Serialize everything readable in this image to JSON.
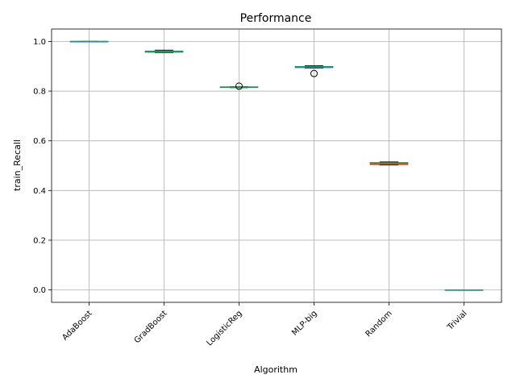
{
  "chart_data": {
    "type": "box",
    "title": "Performance",
    "xlabel": "Algorithm",
    "ylabel": "train_Recall",
    "categories": [
      "AdaBoost",
      "GradBoost",
      "LogisticReg",
      "MLP-big",
      "Random",
      "Trivial"
    ],
    "ylim": [
      -0.05,
      1.05
    ],
    "yticks": [
      0.0,
      0.2,
      0.4,
      0.6,
      0.8,
      1.0
    ],
    "ytick_labels": [
      "0.0",
      "0.2",
      "0.4",
      "0.6",
      "0.8",
      "1.0"
    ],
    "grid": true,
    "boxes": [
      {
        "category": "AdaBoost",
        "whislo": 1.0,
        "q1": 1.0,
        "med": 1.0,
        "q3": 1.0,
        "whishi": 1.0,
        "fliers": []
      },
      {
        "category": "GradBoost",
        "whislo": 0.955,
        "q1": 0.957,
        "med": 0.959,
        "q3": 0.961,
        "whishi": 0.965,
        "fliers": []
      },
      {
        "category": "LogisticReg",
        "whislo": 0.814,
        "q1": 0.815,
        "med": 0.816,
        "q3": 0.817,
        "whishi": 0.818,
        "fliers": [
          0.82
        ]
      },
      {
        "category": "MLP-big",
        "whislo": 0.893,
        "q1": 0.895,
        "med": 0.897,
        "q3": 0.899,
        "whishi": 0.902,
        "fliers": [
          0.871
        ]
      },
      {
        "category": "Random",
        "whislo": 0.503,
        "q1": 0.505,
        "med": 0.508,
        "q3": 0.512,
        "whishi": 0.515,
        "fliers": []
      },
      {
        "category": "Trivial",
        "whislo": 0.0,
        "q1": 0.0,
        "med": 0.0,
        "q3": 0.0,
        "whishi": 0.0,
        "fliers": []
      }
    ],
    "colors": {
      "box": "#1f77b4",
      "median": "#2ca02c",
      "whisker": "#000000",
      "random_box": "#d62728"
    }
  }
}
